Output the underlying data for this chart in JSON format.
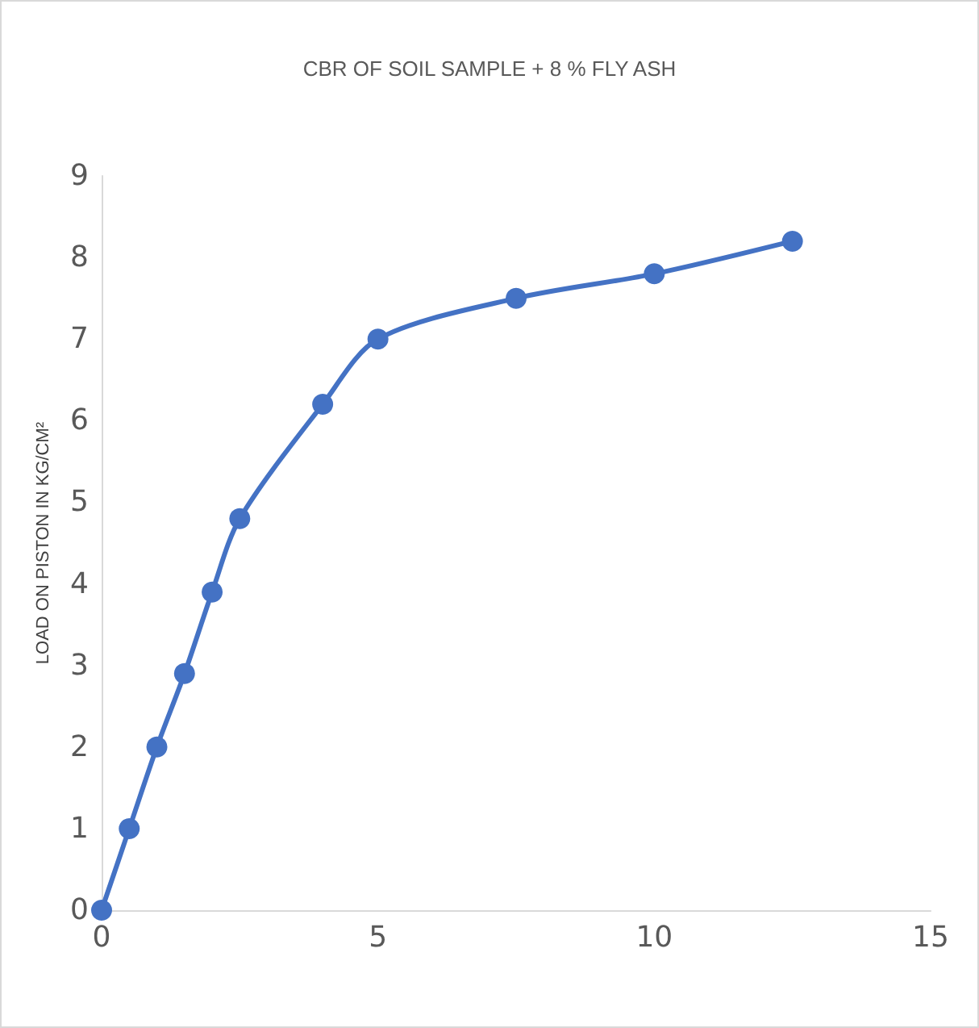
{
  "chart_data": {
    "type": "line",
    "title": "CBR OF SOIL SAMPLE + 8 % FLY ASH",
    "ylabel": "LOAD ON PISTON IN KG/CM²",
    "x": [
      0,
      0.5,
      1,
      1.5,
      2,
      2.5,
      4,
      5,
      7.5,
      10,
      12.5
    ],
    "series": [
      {
        "color": "#4472c4",
        "values": [
          0,
          1.0,
          2.0,
          2.9,
          3.9,
          4.8,
          6.2,
          7.0,
          7.5,
          7.8,
          8.2
        ]
      }
    ],
    "xlim": [
      0,
      15
    ],
    "xticks": [
      0,
      5,
      10,
      15
    ],
    "ylim": [
      0,
      9
    ],
    "yticks": [
      0,
      1,
      2,
      3,
      4,
      5,
      6,
      7,
      8,
      9
    ],
    "marker": "circle",
    "line_style": "solid"
  }
}
